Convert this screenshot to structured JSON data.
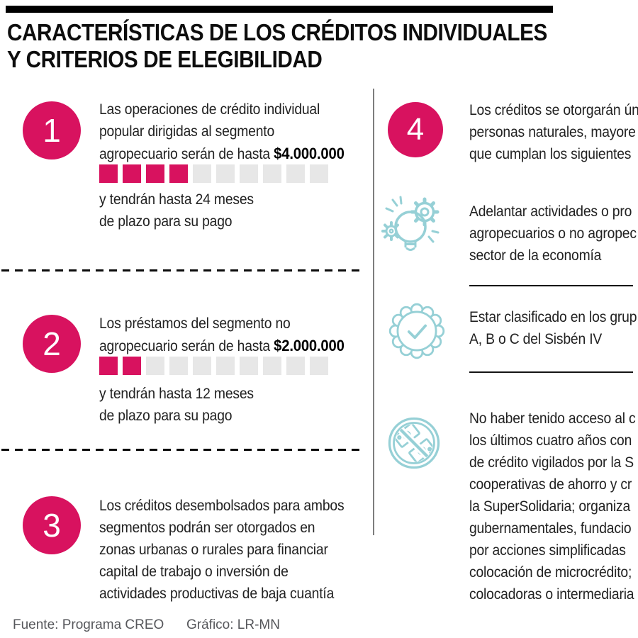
{
  "header": {
    "title_line1": "CARACTERÍSTICAS DE LOS CRÉDITOS INDIVIDUALES",
    "title_line2": "Y CRITERIOS DE ELEGIBILIDAD"
  },
  "left_items": [
    {
      "number": "1",
      "lines": [
        "Las operaciones de crédito individual",
        "popular dirigidas al segmento"
      ],
      "amount_prefix": "agropecuario serán de hasta",
      "amount": "$4.000.000",
      "squares_total": 10,
      "squares_filled": 4,
      "tail_lines": [
        "y tendrán hasta 24 meses",
        "de plazo para su pago"
      ]
    },
    {
      "number": "2",
      "lines": [
        "Los préstamos del segmento no"
      ],
      "amount_prefix": "agropecuario serán de hasta",
      "amount": "$2.000.000",
      "squares_total": 10,
      "squares_filled": 2,
      "tail_lines": [
        "y tendrán hasta 12 meses",
        "de plazo para su pago"
      ]
    },
    {
      "number": "3",
      "lines": [
        "Los créditos desembolsados para ambos",
        "segmentos podrán ser otorgados en",
        "zonas urbanas o rurales para financiar",
        "capital de trabajo o inversión de",
        "actividades productivas de baja cuantía"
      ]
    }
  ],
  "right": {
    "item4": {
      "number": "4",
      "lines": [
        "Los créditos se otorgarán ún",
        "personas naturales, mayore",
        "que cumplan los siguientes"
      ]
    },
    "criteria": [
      {
        "icon": "innovation-icon",
        "lines": [
          "Adelantar actividades o pro",
          "agropecuarios o no agropec",
          "sector de la economía"
        ]
      },
      {
        "icon": "badge-check-icon",
        "lines": [
          "Estar clasificado en los grup",
          "A, B o C del Sisbén IV"
        ]
      },
      {
        "icon": "no-money-icon",
        "lines": [
          "No haber tenido acceso al c",
          "los últimos cuatro años con",
          "de crédito vigilados por la S",
          "cooperativas de ahorro y cr",
          "la SuperSolidaria; organiza",
          "gubernamentales, fundacio",
          "por acciones simplificadas",
          "colocación de microcrédito;",
          "colocadoras o intermediaria"
        ]
      }
    ]
  },
  "footer": {
    "source": "Fuente: Programa CREO",
    "credit": "Gráfico: LR-MN"
  },
  "colors": {
    "pink": "#D8125F",
    "teal": "#96D0D6",
    "square_gray": "#E7E7E7"
  }
}
